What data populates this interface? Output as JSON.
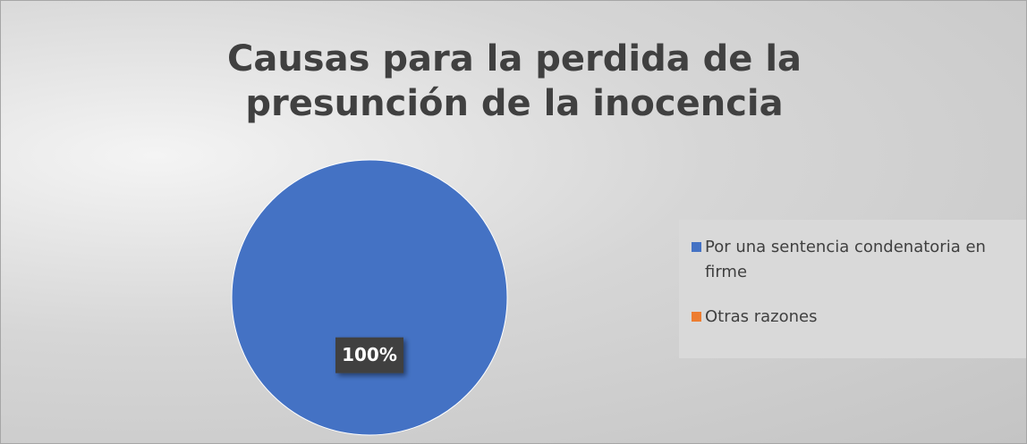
{
  "chart_data": {
    "type": "pie",
    "title": "Causas para la perdida de la presunción de la inocencia",
    "categories": [
      "Por una sentencia condenatoria en firme",
      "Otras razones"
    ],
    "values": [
      100,
      0
    ],
    "value_labels": [
      "100%",
      null
    ],
    "colors": [
      "#4472c4",
      "#ed7d31"
    ],
    "legend": "right"
  }
}
